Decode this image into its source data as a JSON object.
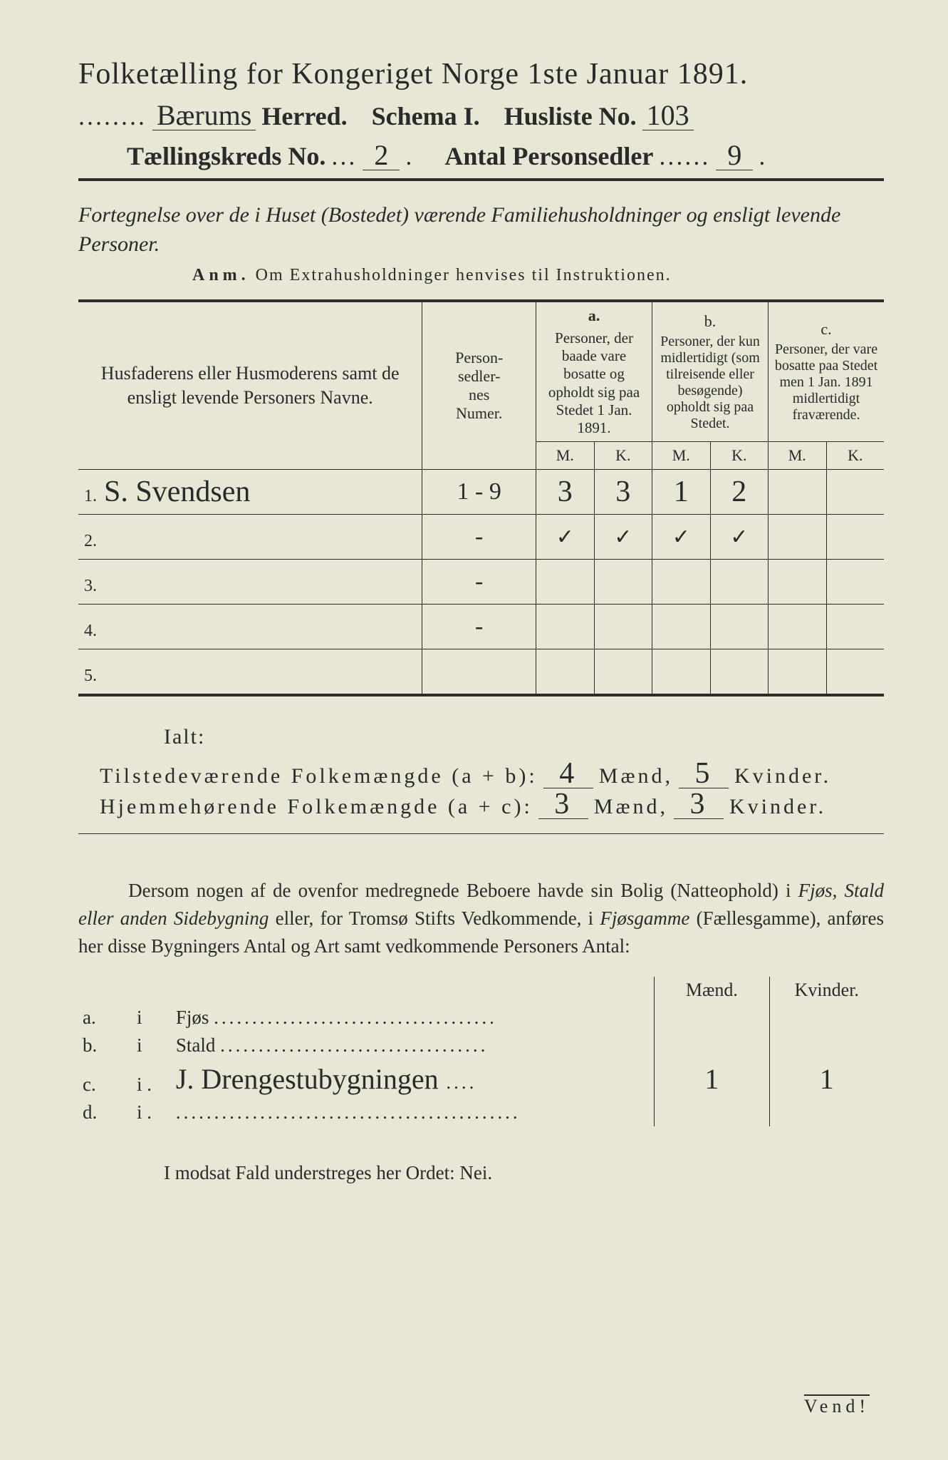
{
  "title": "Folketælling for Kongeriget Norge 1ste Januar 1891.",
  "header": {
    "herred_hand": "Bærums",
    "herred_label": "Herred.",
    "schema_label": "Schema I.",
    "husliste_label": "Husliste No.",
    "husliste_no_hand": "103",
    "kreds_label": "Tællingskreds No.",
    "kreds_no_hand": "2",
    "antal_label": "Antal Personsedler",
    "antal_hand": "9"
  },
  "fortegnelse": "Fortegnelse over de i Huset (Bostedet) værende Familiehusholdninger og ensligt levende Personer.",
  "anm_label": "Anm.",
  "anm_text": "Om Extrahusholdninger henvises til Instruktionen.",
  "table": {
    "col_name": "Husfaderens eller Husmoderens samt de ensligt levende Personers Navne.",
    "col_num": "Person-\nsedler-\nnes\nNumer.",
    "col_a_head": "a.",
    "col_a": "Personer, der baade vare bosatte og opholdt sig paa Stedet 1 Jan. 1891.",
    "col_b_head": "b.",
    "col_b": "Personer, der kun midlertidigt (som tilreisende eller besøgende) opholdt sig paa Stedet.",
    "col_c_head": "c.",
    "col_c": "Personer, der vare bosatte paa Stedet men 1 Jan. 1891 midlertidigt fraværende.",
    "M": "M.",
    "K": "K.",
    "rows": [
      {
        "n": "1.",
        "name": "S. Svendsen",
        "num": "1 - 9",
        "aM": "3",
        "aK": "3",
        "bM": "1",
        "bK": "2",
        "cM": "",
        "cK": ""
      },
      {
        "n": "2.",
        "name": "",
        "num": "-",
        "aM": "✓",
        "aK": "✓",
        "bM": "✓",
        "bK": "✓",
        "cM": "",
        "cK": ""
      },
      {
        "n": "3.",
        "name": "",
        "num": "-",
        "aM": "",
        "aK": "",
        "bM": "",
        "bK": "",
        "cM": "",
        "cK": ""
      },
      {
        "n": "4.",
        "name": "",
        "num": "-",
        "aM": "",
        "aK": "",
        "bM": "",
        "bK": "",
        "cM": "",
        "cK": ""
      },
      {
        "n": "5.",
        "name": "",
        "num": "",
        "aM": "",
        "aK": "",
        "bM": "",
        "bK": "",
        "cM": "",
        "cK": ""
      }
    ]
  },
  "ialt": "Ialt:",
  "sum1": {
    "label": "Tilstedeværende Folkemængde (a + b):",
    "m": "4",
    "maend": "Mænd,",
    "k": "5",
    "kvinder": "Kvinder."
  },
  "sum2": {
    "label": "Hjemmehørende Folkemængde (a + c):",
    "m": "3",
    "maend": "Mænd,",
    "k": "3",
    "kvinder": "Kvinder."
  },
  "dersom": {
    "p1a": "Dersom nogen af de ovenfor medregnede Beboere havde sin Bolig (Natteophold) i ",
    "p1b": "Fjøs, Stald eller anden Sidebygning",
    "p1c": " eller, for Tromsø Stifts Vedkommende, i ",
    "p1d": "Fjøsgamme",
    "p1e": " (Fællesgamme), anføres her disse Bygningers Antal og Art samt vedkommende Personers Antal:"
  },
  "side": {
    "maend": "Mænd.",
    "kvinder": "Kvinder.",
    "rows": [
      {
        "lab": "a.",
        "i": "i",
        "type": "Fjøs",
        "hand": "",
        "m": "",
        "k": ""
      },
      {
        "lab": "b.",
        "i": "i",
        "type": "Stald",
        "hand": "",
        "m": "",
        "k": ""
      },
      {
        "lab": "c.",
        "i": "i .",
        "type": "",
        "hand": "J. Drengestubygningen",
        "m": "1",
        "k": "1"
      },
      {
        "lab": "d.",
        "i": "i .",
        "type": "",
        "hand": "",
        "m": "",
        "k": ""
      }
    ]
  },
  "modsat": "I modsat Fald understreges her Ordet: Nei.",
  "vend": "Vend!",
  "colors": {
    "paper": "#e8e6d4",
    "ink": "#2a2a2a"
  }
}
